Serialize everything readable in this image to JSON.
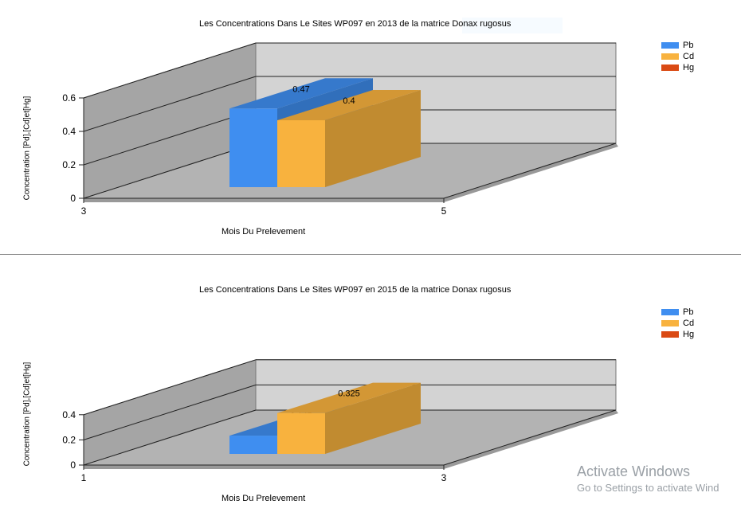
{
  "chart_data": [
    {
      "type": "bar",
      "title": "Les Concentrations Dans Le Sites WP097  en 2013 de la matrice  Donax rugosus",
      "xlabel": "Mois Du Prelevement",
      "ylabel": "Concentration [Pd],[Cd]et[Hg]",
      "x_ticks": [
        "3",
        "5"
      ],
      "y_ticks": [
        "0",
        "0.2",
        "0.4",
        "0.6"
      ],
      "ylim": [
        0,
        0.6
      ],
      "series": [
        {
          "name": "Pb",
          "values": [
            0.47
          ],
          "label": "0.47"
        },
        {
          "name": "Cd",
          "values": [
            0.4
          ],
          "label": "0.4"
        },
        {
          "name": "Hg",
          "values": [
            0
          ],
          "label": ""
        }
      ],
      "legend": [
        "Pb",
        "Cd",
        "Hg"
      ],
      "legend_position": "top-right",
      "grid": true,
      "three_d": true
    },
    {
      "type": "bar",
      "title": "Les Concentrations Dans Le Sites WP097  en 2015 de la matrice  Donax rugosus",
      "xlabel": "Mois Du Prelevement",
      "ylabel": "Concentration [Pd],[Cd]et[Hg]",
      "x_ticks": [
        "1",
        "3"
      ],
      "y_ticks": [
        "0",
        "0.2",
        "0.4"
      ],
      "ylim": [
        0,
        0.4
      ],
      "series": [
        {
          "name": "Pb",
          "values": [
            0.145
          ],
          "label": "0.145"
        },
        {
          "name": "Cd",
          "values": [
            0.325
          ],
          "label": "0.325"
        },
        {
          "name": "Hg",
          "values": [
            0
          ],
          "label": ""
        }
      ],
      "legend": [
        "Pb",
        "Cd",
        "Hg"
      ],
      "legend_position": "top-right",
      "grid": true,
      "three_d": true
    }
  ],
  "colors": {
    "Pb": "#3f8ef0",
    "Cd": "#f8b23e",
    "Hg": "#da4a14",
    "back_wall": "#d3d3d3",
    "side_wall": "#a5a5a5",
    "floor": "#b3b3b3"
  },
  "watermark": {
    "title": "Activate Windows",
    "subtitle": "Go to Settings to activate Wind"
  }
}
